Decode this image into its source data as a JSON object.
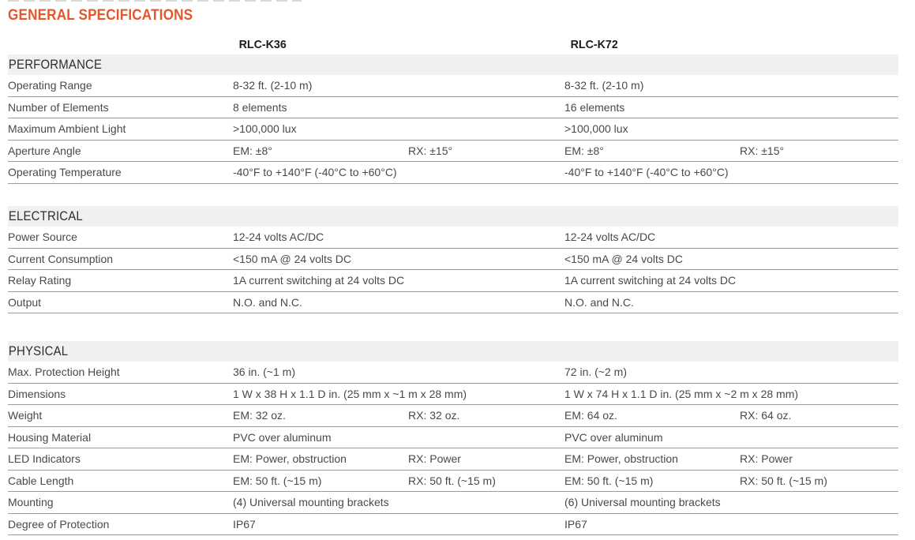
{
  "theme": {
    "accent_color": "#E4572B",
    "section_bar_color": "#F0F0F0",
    "row_line_color": "#9B9B9B"
  },
  "page": {
    "title": "GENERAL SPECIFICATIONS"
  },
  "table": {
    "columns": {
      "c1": "RLC-K36",
      "c2": "RLC-K72"
    },
    "sections": [
      {
        "name": "PERFORMANCE",
        "rows": [
          {
            "label": "Operating Range",
            "c1": "8-32 ft. (2-10 m)",
            "c2": "8-32 ft. (2-10 m)"
          },
          {
            "label": "Number of Elements",
            "c1": "8 elements",
            "c2": "16 elements"
          },
          {
            "label": "Maximum Ambient Light",
            "c1": ">100,000 lux",
            "c2": ">100,000 lux"
          },
          {
            "label": "Aperture Angle",
            "c1_em": "EM: ±8°",
            "c1_rx": "RX: ±15°",
            "c2_em": "EM: ±8°",
            "c2_rx": "RX: ±15°"
          },
          {
            "label": "Operating Temperature",
            "c1": "-40°F to +140°F (-40°C to +60°C)",
            "c2": "-40°F to +140°F (-40°C to +60°C)"
          }
        ]
      },
      {
        "name": "ELECTRICAL",
        "rows": [
          {
            "label": "Power Source",
            "c1": "12-24 volts AC/DC",
            "c2": "12-24 volts AC/DC"
          },
          {
            "label": "Current Consumption",
            "c1": "<150 mA @ 24 volts DC",
            "c2": "<150 mA @ 24 volts DC"
          },
          {
            "label": "Relay Rating",
            "c1": "1A current switching at 24 volts DC",
            "c2": "1A current switching at 24 volts DC"
          },
          {
            "label": "Output",
            "c1": "N.O. and N.C.",
            "c2": "N.O. and N.C."
          }
        ]
      },
      {
        "name": "PHYSICAL",
        "rows": [
          {
            "label": "Max. Protection Height",
            "c1": "36 in. (~1 m)",
            "c2": "72 in. (~2 m)"
          },
          {
            "label": "Dimensions",
            "c1": "1 W x 38 H x 1.1 D in. (25 mm x ~1 m x 28 mm)",
            "c2": "1 W x 74 H x 1.1 D in. (25 mm x ~2 m x 28 mm)"
          },
          {
            "label": "Weight",
            "c1_em": "EM: 32 oz.",
            "c1_rx": "RX: 32 oz.",
            "c2_em": "EM: 64 oz.",
            "c2_rx": "RX: 64 oz."
          },
          {
            "label": "Housing Material",
            "c1": "PVC over aluminum",
            "c2": "PVC over aluminum"
          },
          {
            "label": "LED Indicators",
            "c1_em": "EM: Power, obstruction",
            "c1_rx": "RX: Power",
            "c2_em": "EM: Power, obstruction",
            "c2_rx": "RX: Power"
          },
          {
            "label": "Cable Length",
            "c1_em": "EM: 50 ft. (~15 m)",
            "c1_rx": "RX: 50 ft. (~15 m)",
            "c2_em": "EM: 50 ft. (~15 m)",
            "c2_rx": "RX: 50 ft. (~15 m)"
          },
          {
            "label": "Mounting",
            "c1": "(4) Universal mounting brackets",
            "c2": "(6) Universal mounting brackets"
          },
          {
            "label": "Degree of Protection",
            "c1": "IP67",
            "c2": "IP67"
          }
        ]
      }
    ]
  }
}
